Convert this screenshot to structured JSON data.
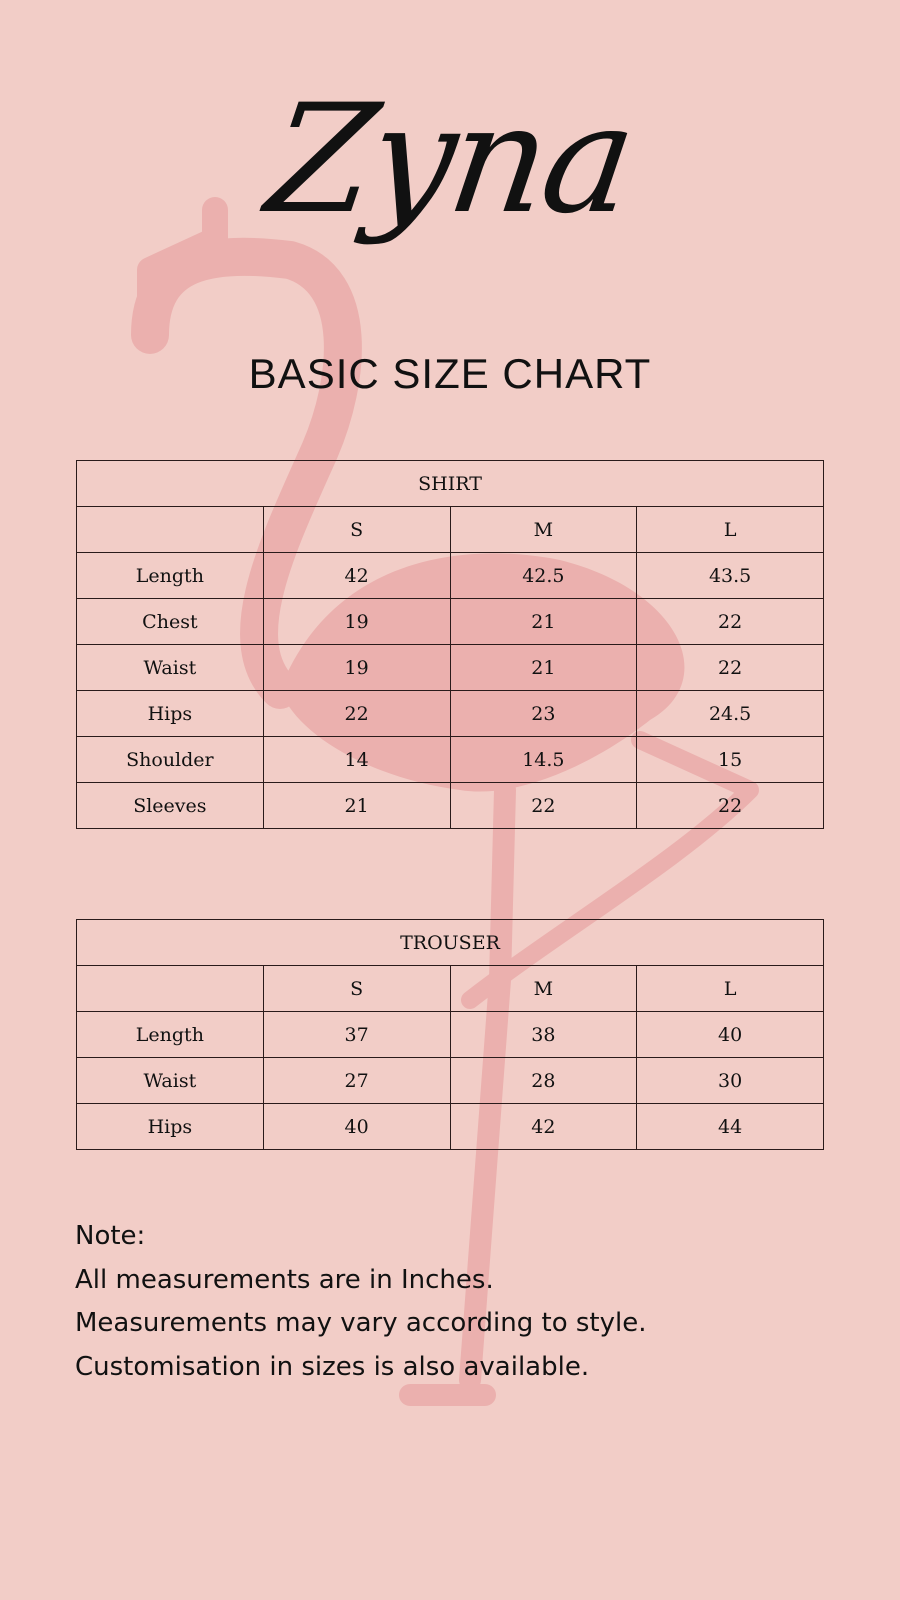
{
  "brand": "Zyna",
  "colors": {
    "background": "#f2cdc7",
    "flamingo": "#ebb0ae",
    "text": "#111111"
  },
  "title": "BASIC SIZE CHART",
  "shirt": {
    "heading": "SHIRT",
    "sizes": [
      "S",
      "M",
      "L"
    ],
    "rows": [
      {
        "label": "Length",
        "values": [
          "42",
          "42.5",
          "43.5"
        ]
      },
      {
        "label": "Chest",
        "values": [
          "19",
          "21",
          "22"
        ]
      },
      {
        "label": "Waist",
        "values": [
          "19",
          "21",
          "22"
        ]
      },
      {
        "label": "Hips",
        "values": [
          "22",
          "23",
          "24.5"
        ]
      },
      {
        "label": "Shoulder",
        "values": [
          "14",
          "14.5",
          "15"
        ]
      },
      {
        "label": "Sleeves",
        "values": [
          "21",
          "22",
          "22"
        ]
      }
    ]
  },
  "trouser": {
    "heading": "TROUSER",
    "sizes": [
      "S",
      "M",
      "L"
    ],
    "rows": [
      {
        "label": "Length",
        "values": [
          "37",
          "38",
          "40"
        ]
      },
      {
        "label": "Waist",
        "values": [
          "27",
          "28",
          "30"
        ]
      },
      {
        "label": "Hips",
        "values": [
          "40",
          "42",
          "44"
        ]
      }
    ]
  },
  "note": {
    "heading": "Note:",
    "lines": [
      "All measurements are in Inches.",
      "Measurements may vary according to style.",
      "Customisation in sizes is also available."
    ]
  }
}
